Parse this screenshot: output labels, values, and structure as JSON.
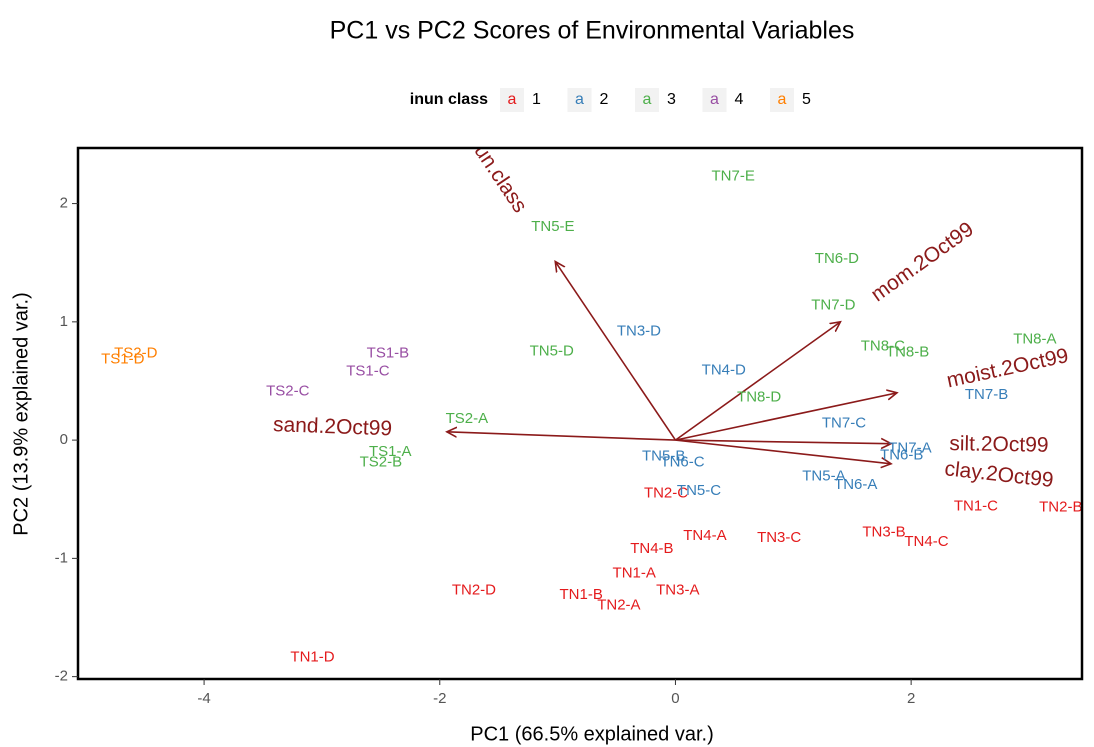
{
  "chart_data": {
    "type": "biplot",
    "title": "PC1 vs PC2 Scores of Environmental Variables",
    "xlabel": "PC1 (66.5% explained var.)",
    "ylabel": "PC2 (13.9% explained var.)",
    "legend_title": "inun class",
    "legend_key": "a",
    "legend_position": "top",
    "xlim": [
      -5.07,
      3.45
    ],
    "ylim": [
      -2.02,
      2.47
    ],
    "xticks": [
      -4,
      -2,
      0,
      2
    ],
    "yticks": [
      -2,
      -1,
      0,
      1,
      2
    ],
    "series": [
      {
        "name": "1",
        "color": "#e41a1c",
        "labels": [
          "TN1-C",
          "TN2-B",
          "TN3-B",
          "TN4-C",
          "TN3-C",
          "TN4-A",
          "TN4-B",
          "TN1-A",
          "TN3-A",
          "TN1-B",
          "TN2-A",
          "TN2-D",
          "TN1-D",
          "TN2-C"
        ],
        "x": [
          2.55,
          3.27,
          1.77,
          2.13,
          0.88,
          0.25,
          -0.2,
          -0.35,
          0.02,
          -0.8,
          -0.48,
          -1.71,
          -3.08,
          -0.08
        ],
        "y": [
          -0.56,
          -0.57,
          -0.78,
          -0.86,
          -0.83,
          -0.81,
          -0.92,
          -1.13,
          -1.27,
          -1.31,
          -1.4,
          -1.27,
          -1.84,
          -0.45
        ]
      },
      {
        "name": "2",
        "color": "#377eb8",
        "labels": [
          "TN3-D",
          "TN4-D",
          "TN7-B",
          "TN7-C",
          "TN7-A",
          "TN6-B",
          "TN5-B",
          "TN6-C",
          "TN5-A",
          "TN6-A",
          "TN5-C"
        ],
        "x": [
          -0.31,
          0.41,
          2.64,
          1.43,
          1.99,
          1.92,
          -0.1,
          0.06,
          1.26,
          1.53,
          0.2
        ],
        "y": [
          0.92,
          0.59,
          0.38,
          0.14,
          -0.07,
          -0.13,
          -0.14,
          -0.19,
          -0.31,
          -0.38,
          -0.43
        ]
      },
      {
        "name": "3",
        "color": "#4daf4a",
        "labels": [
          "TN7-E",
          "TN5-E",
          "TN6-D",
          "TN7-D",
          "TN5-D",
          "TN8-C",
          "TN8-B",
          "TN8-A",
          "TN8-D",
          "TS2-A",
          "TS1-A",
          "TS2-B"
        ],
        "x": [
          0.49,
          -1.04,
          1.37,
          1.34,
          -1.05,
          1.76,
          1.97,
          3.05,
          0.71,
          -1.77,
          -2.42,
          -2.5
        ],
        "y": [
          2.23,
          1.8,
          1.53,
          1.14,
          0.75,
          0.79,
          0.74,
          0.85,
          0.36,
          0.18,
          -0.1,
          -0.19
        ]
      },
      {
        "name": "4",
        "color": "#984ea3",
        "labels": [
          "TS1-B",
          "TS1-C",
          "TS2-C"
        ],
        "x": [
          -2.44,
          -2.61,
          -3.29
        ],
        "y": [
          0.73,
          0.58,
          0.41
        ]
      },
      {
        "name": "5",
        "color": "#ff7f00",
        "labels": [
          "TS2-D",
          "TS1-D"
        ],
        "x": [
          -4.58,
          -4.69
        ],
        "y": [
          0.73,
          0.68
        ]
      }
    ],
    "loadings_color": "#8b1a1a",
    "loadings": [
      {
        "name": "sand.2Oct99",
        "x": -1.94,
        "y": 0.07
      },
      {
        "name": "inun.class",
        "x": -1.02,
        "y": 1.51
      },
      {
        "name": "mom.2Oct99",
        "x": 1.4,
        "y": 1.0
      },
      {
        "name": "moist.2Oct99",
        "x": 1.88,
        "y": 0.4
      },
      {
        "name": "silt.2Oct99",
        "x": 1.83,
        "y": -0.03
      },
      {
        "name": "clay.2Oct99",
        "x": 1.83,
        "y": -0.2
      }
    ]
  }
}
